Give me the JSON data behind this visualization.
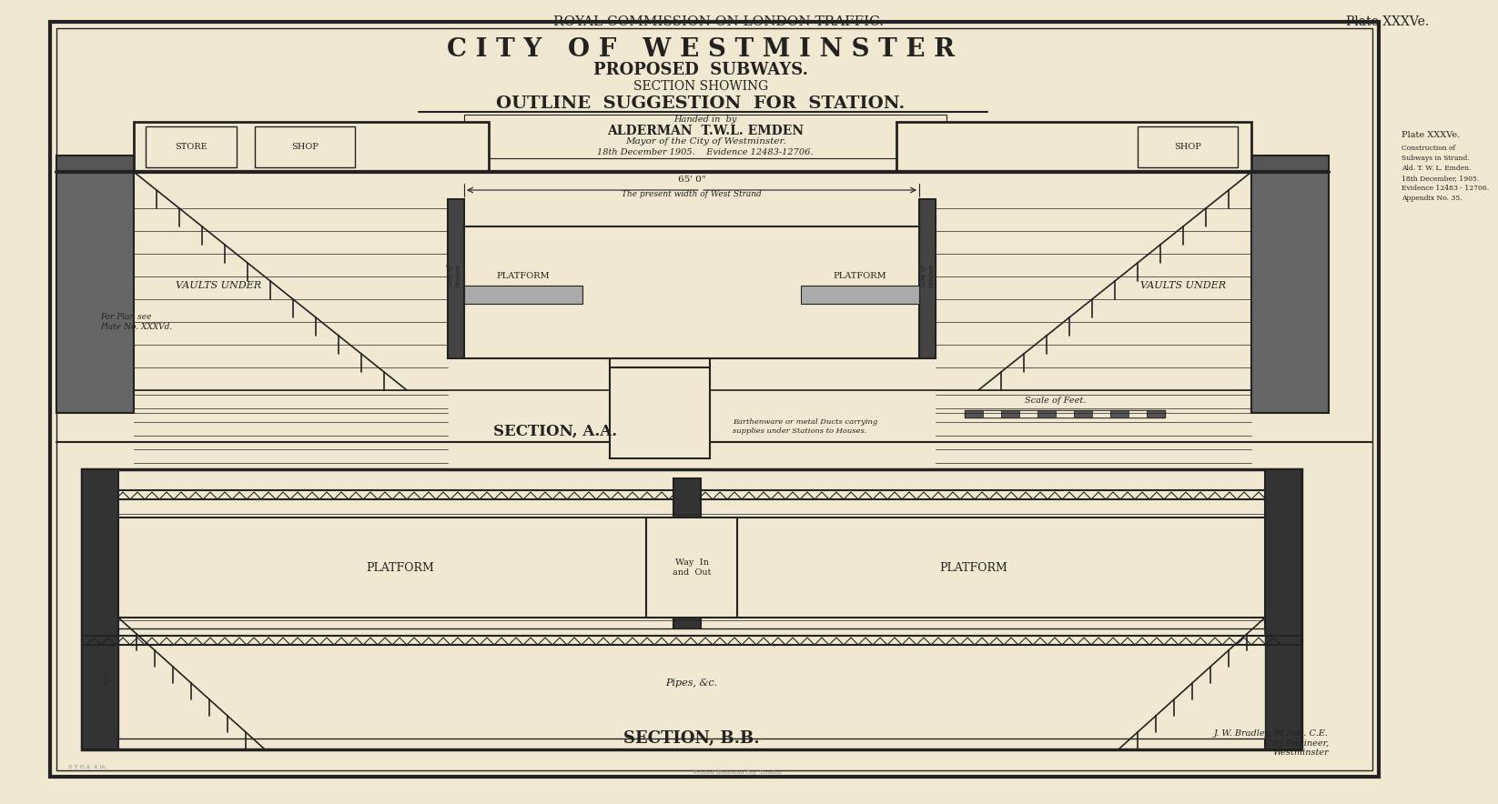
{
  "bg_color": "#f0e8d0",
  "border_color": "#333333",
  "title_top": "ROYAL COMMISSION ON LONDON TRAFFIC.",
  "plate_top_right": "Plate XXXVe.",
  "main_title": "C I T Y   O F   W E S T M I N S T E R",
  "subtitle1": "PROPOSED  SUBWAYS.",
  "subtitle2": "SECTION SHOWING",
  "subtitle3": "OUTLINE  SUGGESTION  FOR  STATION.",
  "handed_text": "Handed in  by",
  "alderman_text": "ALDERMAN  T.W.L. EMDEN",
  "mayor_text": "Mayor of the City of Westminster.",
  "date_text": "18th December 1905.    Evidence 12483-12706.",
  "width_text": "65' 0\"",
  "width_subtext": "The present width of West Strand",
  "section_aa_label": "SECTION, A.A.",
  "section_bb_label": "SECTION, B.B.",
  "store_label": "STORE",
  "shop_label_left": "SHOP",
  "shop_label_right": "SHOP",
  "platform_label_left": "PLATFORM",
  "platform_label_right": "PLATFORM",
  "platform_b_left": "PLATFORM",
  "platform_b_right": "PLATFORM",
  "vaults_left": "VAULTS UNDER",
  "vaults_right": "VAULTS UNDER",
  "way_label": "Way  In\nand  Out",
  "pipes_label": "Pipes, &c.",
  "earthenware_text": "Earthenware or metal Ducts carrying\nsupplies under Stations to Houses.",
  "for_plan_text": "For Plan see\nPlate No. XXXVd.",
  "scale_text": "Scale of Feet.",
  "plate_side_title": "Plate XXXVe.",
  "plate_side_text": "Construction of\nSubways in Strand.\nAld. T. W. L. Emden.\n18th December, 1905.\nEvidence 12483 - 12706.\nAppendix No. 35.",
  "engineer_text": "J. W. Bradley, M.Inst. C.E.\nCity Engineer,\nWestminster",
  "line_color": "#222222",
  "heavy_line": 3.0,
  "thin_line": 0.8
}
